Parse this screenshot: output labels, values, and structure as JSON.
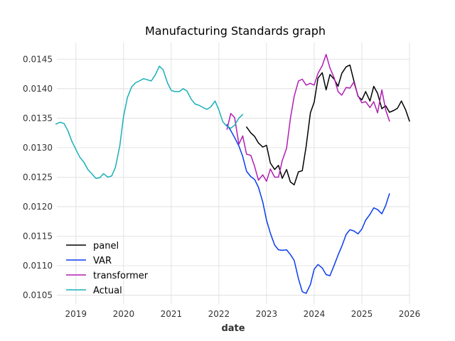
{
  "chart_data": {
    "type": "line",
    "title": "Manufacturing Standards graph",
    "xlabel": "date",
    "ylabel": "",
    "xlim": [
      2018.6,
      2026.0
    ],
    "ylim": [
      0.01035,
      0.01478
    ],
    "grid": true,
    "legend_position": "lower-left",
    "x_ticks": [
      {
        "value": 2019,
        "label": "2019"
      },
      {
        "value": 2020,
        "label": "2020"
      },
      {
        "value": 2021,
        "label": "2021"
      },
      {
        "value": 2022,
        "label": "2022"
      },
      {
        "value": 2023,
        "label": "2023"
      },
      {
        "value": 2024,
        "label": "2024"
      },
      {
        "value": 2025,
        "label": "2025"
      },
      {
        "value": 2026,
        "label": "2026"
      }
    ],
    "y_ticks": [
      {
        "value": 0.0105,
        "label": "0.0105"
      },
      {
        "value": 0.011,
        "label": "0.0110"
      },
      {
        "value": 0.0115,
        "label": "0.0115"
      },
      {
        "value": 0.012,
        "label": "0.0120"
      },
      {
        "value": 0.0125,
        "label": "0.0125"
      },
      {
        "value": 0.013,
        "label": "0.0130"
      },
      {
        "value": 0.0135,
        "label": "0.0135"
      },
      {
        "value": 0.014,
        "label": "0.0140"
      },
      {
        "value": 0.0145,
        "label": "0.0145"
      }
    ],
    "series": [
      {
        "name": "panel",
        "color": "#000000",
        "x": [
          2022.58,
          2022.67,
          2022.75,
          2022.83,
          2022.92,
          2023.0,
          2023.08,
          2023.17,
          2023.25,
          2023.33,
          2023.42,
          2023.5,
          2023.58,
          2023.67,
          2023.75,
          2023.83,
          2023.92,
          2024.0,
          2024.08,
          2024.17,
          2024.25,
          2024.33,
          2024.42,
          2024.5,
          2024.58,
          2024.67,
          2024.75,
          2024.83,
          2024.92,
          2025.0,
          2025.08,
          2025.17,
          2025.25,
          2025.33,
          2025.42,
          2025.5,
          2025.58,
          2025.67,
          2025.75,
          2025.83,
          2025.92,
          2026.0
        ],
        "y": [
          0.01335,
          0.01325,
          0.01319,
          0.01308,
          0.01301,
          0.01304,
          0.01274,
          0.01263,
          0.0127,
          0.01248,
          0.01263,
          0.01242,
          0.01237,
          0.01259,
          0.01261,
          0.01302,
          0.01359,
          0.01377,
          0.01418,
          0.01427,
          0.01398,
          0.01424,
          0.01416,
          0.01404,
          0.01426,
          0.01437,
          0.0144,
          0.01414,
          0.01387,
          0.01381,
          0.01395,
          0.01379,
          0.01404,
          0.01392,
          0.01366,
          0.01371,
          0.0136,
          0.01363,
          0.01367,
          0.01379,
          0.01364,
          0.01345
        ]
      },
      {
        "name": "VAR",
        "color": "#0a3cf0",
        "x": [
          2022.17,
          2022.25,
          2022.33,
          2022.42,
          2022.5,
          2022.58,
          2022.67,
          2022.75,
          2022.83,
          2022.92,
          2023.0,
          2023.08,
          2023.17,
          2023.25,
          2023.33,
          2023.42,
          2023.5,
          2023.58,
          2023.67,
          2023.75,
          2023.83,
          2023.92,
          2024.0,
          2024.08,
          2024.17,
          2024.25,
          2024.33,
          2024.42,
          2024.5,
          2024.58,
          2024.67,
          2024.75,
          2024.83,
          2024.92,
          2025.0,
          2025.08,
          2025.17,
          2025.25,
          2025.33,
          2025.42,
          2025.5,
          2025.58
        ],
        "y": [
          0.01339,
          0.01329,
          0.01317,
          0.01303,
          0.01285,
          0.0126,
          0.01251,
          0.01246,
          0.01233,
          0.01208,
          0.01177,
          0.01155,
          0.01135,
          0.01127,
          0.01126,
          0.01127,
          0.01119,
          0.01109,
          0.01078,
          0.01056,
          0.01053,
          0.01068,
          0.01094,
          0.01102,
          0.01096,
          0.01085,
          0.01083,
          0.01101,
          0.01118,
          0.01133,
          0.01153,
          0.01161,
          0.01159,
          0.01154,
          0.01162,
          0.01177,
          0.01187,
          0.01198,
          0.01195,
          0.01188,
          0.01202,
          0.01222
        ]
      },
      {
        "name": "transformer",
        "color": "#b01eb4",
        "x": [
          2022.17,
          2022.25,
          2022.33,
          2022.42,
          2022.5,
          2022.58,
          2022.67,
          2022.75,
          2022.83,
          2022.92,
          2023.0,
          2023.08,
          2023.17,
          2023.25,
          2023.33,
          2023.42,
          2023.5,
          2023.58,
          2023.67,
          2023.75,
          2023.83,
          2023.92,
          2024.0,
          2024.08,
          2024.17,
          2024.25,
          2024.33,
          2024.42,
          2024.5,
          2024.58,
          2024.67,
          2024.75,
          2024.83,
          2024.92,
          2025.0,
          2025.08,
          2025.17,
          2025.25,
          2025.33,
          2025.42,
          2025.5,
          2025.58
        ],
        "y": [
          0.01331,
          0.01358,
          0.01351,
          0.01306,
          0.0132,
          0.01289,
          0.01287,
          0.01268,
          0.01245,
          0.01254,
          0.01243,
          0.01264,
          0.0125,
          0.0125,
          0.01278,
          0.01299,
          0.01349,
          0.01387,
          0.01413,
          0.01416,
          0.01406,
          0.01409,
          0.01406,
          0.01426,
          0.01439,
          0.01458,
          0.01435,
          0.01418,
          0.01395,
          0.01389,
          0.01402,
          0.01401,
          0.01411,
          0.01388,
          0.01376,
          0.01378,
          0.01368,
          0.01378,
          0.01359,
          0.01398,
          0.01364,
          0.01345
        ]
      },
      {
        "name": "Actual",
        "color": "#17b0b8",
        "x": [
          2018.58,
          2018.67,
          2018.75,
          2018.83,
          2018.92,
          2019.0,
          2019.08,
          2019.17,
          2019.25,
          2019.33,
          2019.42,
          2019.5,
          2019.58,
          2019.67,
          2019.75,
          2019.83,
          2019.92,
          2020.0,
          2020.08,
          2020.17,
          2020.25,
          2020.33,
          2020.42,
          2020.5,
          2020.58,
          2020.67,
          2020.75,
          2020.83,
          2020.92,
          2021.0,
          2021.08,
          2021.17,
          2021.25,
          2021.33,
          2021.42,
          2021.5,
          2021.58,
          2021.67,
          2021.75,
          2021.83,
          2021.92,
          2022.0,
          2022.08,
          2022.17,
          2022.25,
          2022.33,
          2022.42,
          2022.5
        ],
        "y": [
          0.0134,
          0.01343,
          0.01341,
          0.01329,
          0.0131,
          0.01297,
          0.01284,
          0.01275,
          0.01263,
          0.01256,
          0.01248,
          0.01249,
          0.01256,
          0.0125,
          0.01252,
          0.01267,
          0.01303,
          0.01353,
          0.01385,
          0.01403,
          0.0141,
          0.01413,
          0.01417,
          0.01415,
          0.01413,
          0.01424,
          0.01438,
          0.01432,
          0.0141,
          0.01397,
          0.01395,
          0.01395,
          0.014,
          0.01396,
          0.01382,
          0.01374,
          0.01372,
          0.01368,
          0.01365,
          0.01369,
          0.01379,
          0.01364,
          0.01344,
          0.01336,
          0.01333,
          0.01338,
          0.0135,
          0.01356
        ]
      }
    ]
  }
}
